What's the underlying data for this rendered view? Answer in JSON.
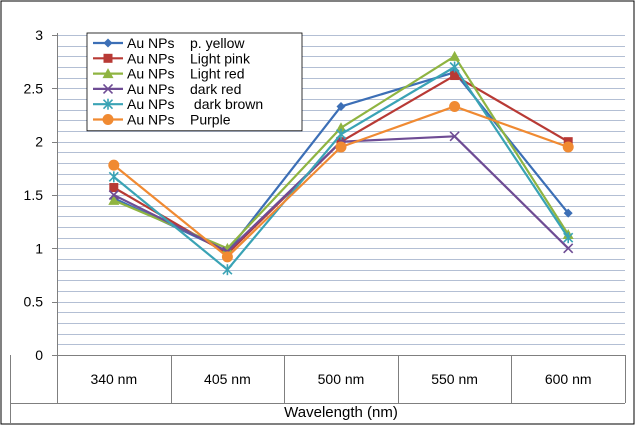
{
  "chart_data": {
    "type": "line",
    "title": "",
    "xlabel": "Wavelength (nm)",
    "ylabel": "",
    "categories": [
      "340 nm",
      "405 nm",
      "500 nm",
      "550 nm",
      "600 nm"
    ],
    "ylim": [
      0,
      3
    ],
    "yticks": [
      0,
      0.5,
      1,
      1.5,
      2,
      2.5,
      3
    ],
    "ytick_labels": [
      "0",
      "0.5",
      "1",
      "1.5",
      "2",
      "2.5",
      "3"
    ],
    "grid": "horizontal minor lines every 0.1",
    "legend_position": "top-left",
    "series": [
      {
        "name": "Au NPs    p. yellow",
        "color": "#3C6FB6",
        "marker": "diamond",
        "values": [
          1.47,
          0.97,
          2.33,
          2.65,
          1.33
        ]
      },
      {
        "name": "Au NPs    Light pink",
        "color": "#B83A35",
        "marker": "square",
        "values": [
          1.57,
          0.95,
          2.0,
          2.62,
          2.0
        ]
      },
      {
        "name": "Au NPs    Light red",
        "color": "#8FB441",
        "marker": "triangle",
        "values": [
          1.45,
          1.0,
          2.13,
          2.8,
          1.13
        ]
      },
      {
        "name": "Au NPs    dark red",
        "color": "#6E4C94",
        "marker": "x",
        "values": [
          1.5,
          0.97,
          2.0,
          2.05,
          1.0
        ]
      },
      {
        "name": "Au NPs     dark brown",
        "color": "#3AA3B5",
        "marker": "star",
        "values": [
          1.67,
          0.8,
          2.07,
          2.7,
          1.1
        ]
      },
      {
        "name": "Au NPs    Purple",
        "color": "#F08A32",
        "marker": "circle",
        "values": [
          1.78,
          0.92,
          1.95,
          2.33,
          1.95
        ]
      }
    ]
  }
}
